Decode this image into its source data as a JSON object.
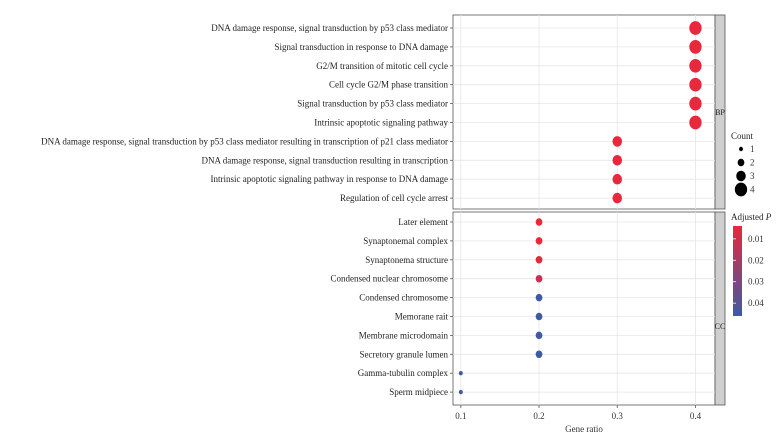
{
  "chart_data": {
    "type": "scatter",
    "subtype": "dot-plot (faceted)",
    "xlabel": "Gene ratio",
    "xlim": [
      0.09,
      0.425
    ],
    "x_ticks": [
      "0.1",
      "0.2",
      "0.3",
      "0.4"
    ],
    "x_tick_values": [
      0.1,
      0.2,
      0.3,
      0.4
    ],
    "grid": true,
    "facets": [
      {
        "name": "BP",
        "terms": [
          {
            "label": "DNA damage response, signal transduction by p53 class mediator",
            "gene_ratio": 0.4,
            "count": 4,
            "padj": 0.004
          },
          {
            "label": "Signal transduction in response to DNA damage",
            "gene_ratio": 0.4,
            "count": 4,
            "padj": 0.004
          },
          {
            "label": "G2/M transition of mitotic cell cycle",
            "gene_ratio": 0.4,
            "count": 4,
            "padj": 0.004
          },
          {
            "label": "Cell cycle G2/M phase transition",
            "gene_ratio": 0.4,
            "count": 4,
            "padj": 0.004
          },
          {
            "label": "Signal transduction by p53 class mediator",
            "gene_ratio": 0.4,
            "count": 4,
            "padj": 0.004
          },
          {
            "label": "Intrinsic apoptotic signaling pathway",
            "gene_ratio": 0.4,
            "count": 4,
            "padj": 0.004
          },
          {
            "label": "DNA damage response, signal transduction by p53 class mediator resulting in transcription of p21 class mediator",
            "gene_ratio": 0.3,
            "count": 3,
            "padj": 0.004
          },
          {
            "label": "DNA damage response, signal transduction resulting in transcription",
            "gene_ratio": 0.3,
            "count": 3,
            "padj": 0.004
          },
          {
            "label": "Intrinsic apoptotic signaling pathway in response to DNA damage",
            "gene_ratio": 0.3,
            "count": 3,
            "padj": 0.004
          },
          {
            "label": "Regulation of cell cycle arrest",
            "gene_ratio": 0.3,
            "count": 3,
            "padj": 0.004
          }
        ]
      },
      {
        "name": "CC",
        "terms": [
          {
            "label": "Later element",
            "gene_ratio": 0.2,
            "count": 2,
            "padj": 0.004
          },
          {
            "label": "Synaptonemal complex",
            "gene_ratio": 0.2,
            "count": 2,
            "padj": 0.004
          },
          {
            "label": "Synaptonema structure",
            "gene_ratio": 0.2,
            "count": 2,
            "padj": 0.005
          },
          {
            "label": "Condensed nuclear chromosome",
            "gene_ratio": 0.2,
            "count": 2,
            "padj": 0.012
          },
          {
            "label": "Condensed chromosome",
            "gene_ratio": 0.2,
            "count": 2,
            "padj": 0.045
          },
          {
            "label": "Memorane rait",
            "gene_ratio": 0.2,
            "count": 2,
            "padj": 0.045
          },
          {
            "label": "Membrane microdomain",
            "gene_ratio": 0.2,
            "count": 2,
            "padj": 0.045
          },
          {
            "label": "Secretory granule lumen",
            "gene_ratio": 0.2,
            "count": 2,
            "padj": 0.045
          },
          {
            "label": "Gamma-tubulin complex",
            "gene_ratio": 0.1,
            "count": 1,
            "padj": 0.045
          },
          {
            "label": "Sperm midpiece",
            "gene_ratio": 0.1,
            "count": 1,
            "padj": 0.045
          }
        ]
      }
    ],
    "legend_size": {
      "title": "Count",
      "entries": [
        {
          "label": "1",
          "value": 1
        },
        {
          "label": "2",
          "value": 2
        },
        {
          "label": "3",
          "value": 3
        },
        {
          "label": "4",
          "value": 4
        }
      ]
    },
    "legend_color": {
      "title": "Adjusted",
      "title_italic": "P",
      "ticks": [
        "0.01",
        "0.02",
        "0.03",
        "0.04"
      ],
      "tick_values": [
        0.01,
        0.02,
        0.03,
        0.04
      ],
      "range": [
        0.004,
        0.046
      ],
      "low_color": "#E8283C",
      "high_color": "#3C5AA8"
    }
  }
}
